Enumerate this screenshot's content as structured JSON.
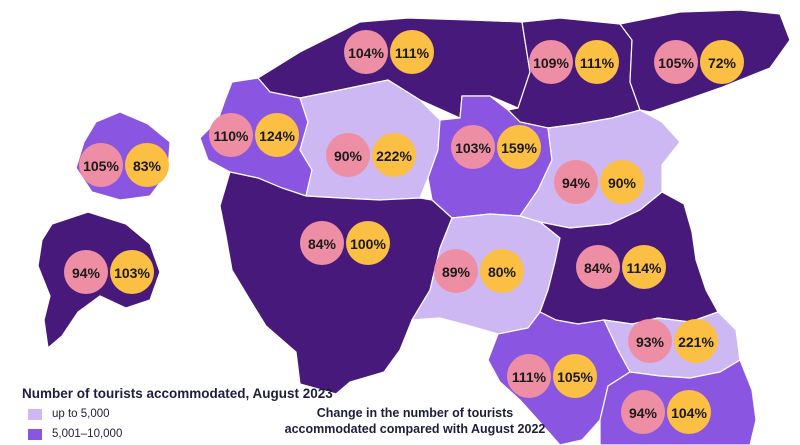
{
  "colors": {
    "dark": "#46197a",
    "medium": "#8a55e0",
    "light": "#cdb8f4",
    "pink": "#ee8ea5",
    "yellow": "#fbbf44",
    "border": "#ffffff"
  },
  "legend": {
    "title": "Number of tourists accommodated, August 2023",
    "items": [
      {
        "label": "up to 5,000",
        "color": "#cdb8f4"
      },
      {
        "label": "5,001–10,000",
        "color": "#8a55e0"
      }
    ]
  },
  "change_caption": {
    "line1": "Change in the number of tourists",
    "line2": "accommodated compared with August 2022"
  },
  "regions": [
    {
      "id": "harju",
      "class": "dark",
      "pink": "104%",
      "yellow": "111%"
    },
    {
      "id": "laane-viru",
      "class": "dark",
      "pink": "109%",
      "yellow": "111%"
    },
    {
      "id": "ida-viru",
      "class": "dark",
      "pink": "105%",
      "yellow": "72%"
    },
    {
      "id": "laane",
      "class": "medium",
      "pink": "110%",
      "yellow": "124%"
    },
    {
      "id": "hiiu",
      "class": "medium",
      "pink": "105%",
      "yellow": "83%"
    },
    {
      "id": "rapla",
      "class": "light",
      "pink": "90%",
      "yellow": "222%"
    },
    {
      "id": "jarva",
      "class": "medium",
      "pink": "103%",
      "yellow": "159%"
    },
    {
      "id": "jogeva",
      "class": "light",
      "pink": "94%",
      "yellow": "90%"
    },
    {
      "id": "saare",
      "class": "dark",
      "pink": "94%",
      "yellow": "103%"
    },
    {
      "id": "parnu",
      "class": "dark",
      "pink": "84%",
      "yellow": "100%"
    },
    {
      "id": "viljandi",
      "class": "light",
      "pink": "89%",
      "yellow": "80%"
    },
    {
      "id": "tartu",
      "class": "dark",
      "pink": "84%",
      "yellow": "114%"
    },
    {
      "id": "polva",
      "class": "light",
      "pink": "93%",
      "yellow": "221%"
    },
    {
      "id": "valga",
      "class": "medium",
      "pink": "111%",
      "yellow": "105%"
    },
    {
      "id": "voru",
      "class": "medium",
      "pink": "94%",
      "yellow": "104%"
    }
  ]
}
